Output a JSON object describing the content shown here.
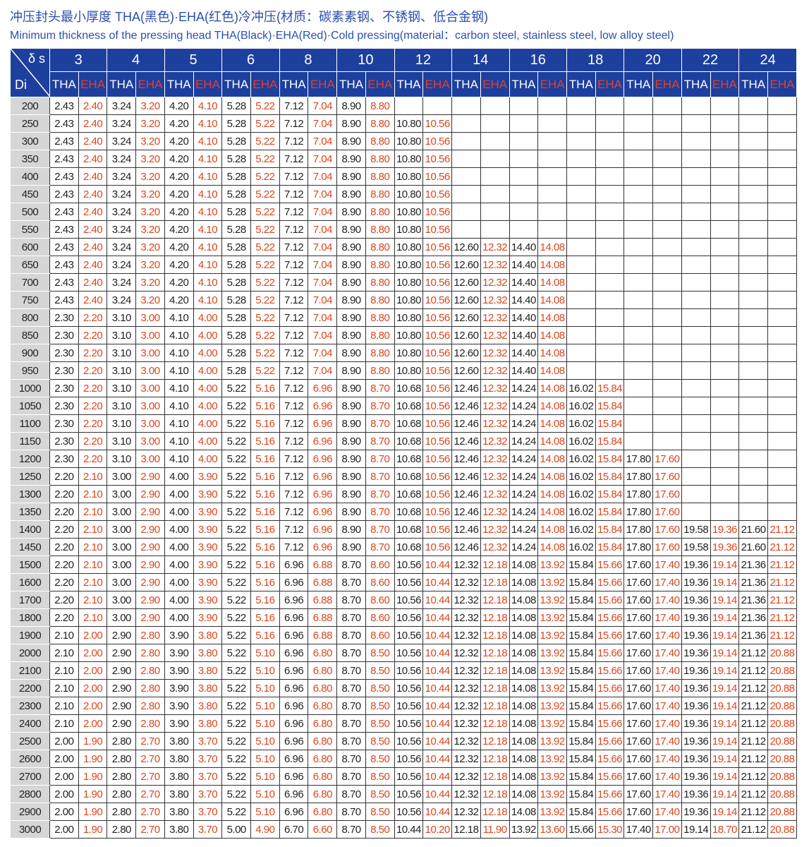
{
  "title": "冲压封头最小厚度  THA(黑色)·EHA(红色)冷冲压(材质：碳素素钢、不锈钢、低合金钢)",
  "subtitle": "Minimum thickness of the pressing head THA(Black)·EHA(Red)·Cold pressing(material：carbon steel, stainless steel, low alloy steel)",
  "colors": {
    "header_bg": "#1d3f9e",
    "eha_text": "#d9461e",
    "tha_text": "#222222",
    "di_bg": "#d6d6d6"
  },
  "table": {
    "corner_top": "δ s",
    "corner_bottom": "Di",
    "tha_label": "THA",
    "eha_label": "EHA",
    "thicknesses": [
      "3",
      "4",
      "5",
      "6",
      "8",
      "10",
      "12",
      "14",
      "16",
      "18",
      "20",
      "22",
      "24"
    ],
    "rows": [
      {
        "di": "200",
        "v": [
          "2.43",
          "2.40",
          "3.24",
          "3.20",
          "4.20",
          "4.10",
          "5.28",
          "5.22",
          "7.12",
          "7.04",
          "8.90",
          "8.80"
        ]
      },
      {
        "di": "250",
        "v": [
          "2.43",
          "2.40",
          "3.24",
          "3.20",
          "4.20",
          "4.10",
          "5.28",
          "5.22",
          "7.12",
          "7.04",
          "8.90",
          "8.80",
          "10.80",
          "10.56"
        ]
      },
      {
        "di": "300",
        "v": [
          "2.43",
          "2.40",
          "3.24",
          "3.20",
          "4.20",
          "4.10",
          "5.28",
          "5.22",
          "7.12",
          "7.04",
          "8.90",
          "8.80",
          "10.80",
          "10.56"
        ]
      },
      {
        "di": "350",
        "v": [
          "2.43",
          "2.40",
          "3.24",
          "3.20",
          "4.20",
          "4.10",
          "5.28",
          "5.22",
          "7.12",
          "7.04",
          "8.90",
          "8.80",
          "10.80",
          "10.56"
        ]
      },
      {
        "di": "400",
        "v": [
          "2.43",
          "2.40",
          "3.24",
          "3.20",
          "4.20",
          "4.10",
          "5.28",
          "5.22",
          "7.12",
          "7.04",
          "8.90",
          "8.80",
          "10.80",
          "10.56"
        ]
      },
      {
        "di": "450",
        "v": [
          "2.43",
          "2.40",
          "3.24",
          "3.20",
          "4.20",
          "4.10",
          "5.28",
          "5.22",
          "7.12",
          "7.04",
          "8.90",
          "8.80",
          "10.80",
          "10.56"
        ]
      },
      {
        "di": "500",
        "v": [
          "2.43",
          "2.40",
          "3.24",
          "3.20",
          "4.20",
          "4.10",
          "5.28",
          "5.22",
          "7.12",
          "7.04",
          "8.90",
          "8.80",
          "10.80",
          "10.56"
        ]
      },
      {
        "di": "550",
        "v": [
          "2.43",
          "2.40",
          "3.24",
          "3.20",
          "4.20",
          "4.10",
          "5.28",
          "5.22",
          "7.12",
          "7.04",
          "8.90",
          "8.80",
          "10.80",
          "10.56"
        ]
      },
      {
        "di": "600",
        "v": [
          "2.43",
          "2.40",
          "3.24",
          "3.20",
          "4.20",
          "4.10",
          "5.28",
          "5.22",
          "7.12",
          "7.04",
          "8.90",
          "8.80",
          "10.80",
          "10.56",
          "12.60",
          "12.32",
          "14.40",
          "14.08"
        ]
      },
      {
        "di": "650",
        "v": [
          "2.43",
          "2.40",
          "3.24",
          "3.20",
          "4.20",
          "4.10",
          "5.28",
          "5.22",
          "7.12",
          "7.04",
          "8.90",
          "8.80",
          "10.80",
          "10.56",
          "12.60",
          "12.32",
          "14.40",
          "14.08"
        ]
      },
      {
        "di": "700",
        "v": [
          "2.43",
          "2.40",
          "3.24",
          "3.20",
          "4.20",
          "4.10",
          "5.28",
          "5.22",
          "7.12",
          "7.04",
          "8.90",
          "8.80",
          "10.80",
          "10.56",
          "12.60",
          "12.32",
          "14.40",
          "14.08"
        ]
      },
      {
        "di": "750",
        "v": [
          "2.43",
          "2.40",
          "3.24",
          "3.20",
          "4.20",
          "4.10",
          "5.28",
          "5.22",
          "7.12",
          "7.04",
          "8.90",
          "8.80",
          "10.80",
          "10.56",
          "12.60",
          "12.32",
          "14.40",
          "14.08"
        ]
      },
      {
        "di": "800",
        "v": [
          "2.30",
          "2.20",
          "3.10",
          "3.00",
          "4.10",
          "4.00",
          "5.28",
          "5.22",
          "7.12",
          "7.04",
          "8.90",
          "8.80",
          "10.80",
          "10.56",
          "12.60",
          "12.32",
          "14.40",
          "14.08"
        ]
      },
      {
        "di": "850",
        "v": [
          "2.30",
          "2.20",
          "3.10",
          "3.00",
          "4.10",
          "4.00",
          "5.28",
          "5.22",
          "7.12",
          "7.04",
          "8.90",
          "8.80",
          "10.80",
          "10.56",
          "12.60",
          "12.32",
          "14.40",
          "14.08"
        ]
      },
      {
        "di": "900",
        "v": [
          "2.30",
          "2.20",
          "3.10",
          "3.00",
          "4.10",
          "4.00",
          "5.28",
          "5.22",
          "7.12",
          "7.04",
          "8.90",
          "8.80",
          "10.80",
          "10.56",
          "12.60",
          "12.32",
          "14.40",
          "14.08"
        ]
      },
      {
        "di": "950",
        "v": [
          "2.30",
          "2.20",
          "3.10",
          "3.00",
          "4.10",
          "4.00",
          "5.28",
          "5.22",
          "7.12",
          "7.04",
          "8.90",
          "8.80",
          "10.80",
          "10.56",
          "12.60",
          "12.32",
          "14.40",
          "14.08"
        ]
      },
      {
        "di": "1000",
        "v": [
          "2.30",
          "2.20",
          "3.10",
          "3.00",
          "4.10",
          "4.00",
          "5.22",
          "5.16",
          "7.12",
          "6.96",
          "8.90",
          "8.70",
          "10.68",
          "10.56",
          "12.46",
          "12.32",
          "14.24",
          "14.08",
          "16.02",
          "15.84"
        ]
      },
      {
        "di": "1050",
        "v": [
          "2.30",
          "2.20",
          "3.10",
          "3.00",
          "4.10",
          "4.00",
          "5.22",
          "5.16",
          "7.12",
          "6.96",
          "8.90",
          "8.70",
          "10.68",
          "10.56",
          "12.46",
          "12.32",
          "14.24",
          "14.08",
          "16.02",
          "15.84"
        ]
      },
      {
        "di": "1100",
        "v": [
          "2.30",
          "2.20",
          "3.10",
          "3.00",
          "4.10",
          "4.00",
          "5.22",
          "5.16",
          "7.12",
          "6.96",
          "8.90",
          "8.70",
          "10.68",
          "10.56",
          "12.46",
          "12.32",
          "14.24",
          "14.08",
          "16.02",
          "15.84"
        ]
      },
      {
        "di": "1150",
        "v": [
          "2.30",
          "2.20",
          "3.10",
          "3.00",
          "4.10",
          "4.00",
          "5.22",
          "5.16",
          "7.12",
          "6.96",
          "8.90",
          "8.70",
          "10.68",
          "10.56",
          "12.46",
          "12.32",
          "14.24",
          "14.08",
          "16.02",
          "15.84"
        ]
      },
      {
        "di": "1200",
        "v": [
          "2.30",
          "2.20",
          "3.10",
          "3.00",
          "4.10",
          "4.00",
          "5.22",
          "5.16",
          "7.12",
          "6.96",
          "8.90",
          "8.70",
          "10.68",
          "10.56",
          "12.46",
          "12.32",
          "14.24",
          "14.08",
          "16.02",
          "15.84",
          "17.80",
          "17.60"
        ]
      },
      {
        "di": "1250",
        "v": [
          "2.20",
          "2.10",
          "3.00",
          "2.90",
          "4.00",
          "3.90",
          "5.22",
          "5.16",
          "7.12",
          "6.96",
          "8.90",
          "8.70",
          "10.68",
          "10.56",
          "12.46",
          "12.32",
          "14.24",
          "14.08",
          "16.02",
          "15.84",
          "17.80",
          "17.60"
        ]
      },
      {
        "di": "1300",
        "v": [
          "2.20",
          "2.10",
          "3.00",
          "2.90",
          "4.00",
          "3.90",
          "5.22",
          "5.16",
          "7.12",
          "6.96",
          "8.90",
          "8.70",
          "10.68",
          "10.56",
          "12.46",
          "12.32",
          "14.24",
          "14.08",
          "16.02",
          "15.84",
          "17.80",
          "17.60"
        ]
      },
      {
        "di": "1350",
        "v": [
          "2.20",
          "2.10",
          "3.00",
          "2.90",
          "4.00",
          "3.90",
          "5.22",
          "5.16",
          "7.12",
          "6.96",
          "8.90",
          "8.70",
          "10.68",
          "10.56",
          "12.46",
          "12.32",
          "14.24",
          "14.08",
          "16.02",
          "15.84",
          "17.80",
          "17.60"
        ]
      },
      {
        "di": "1400",
        "v": [
          "2.20",
          "2.10",
          "3.00",
          "2.90",
          "4.00",
          "3.90",
          "5.22",
          "5.16",
          "7.12",
          "6.96",
          "8.90",
          "8.70",
          "10.68",
          "10.56",
          "12.46",
          "12.32",
          "14.24",
          "14.08",
          "16.02",
          "15.84",
          "17.80",
          "17.60",
          "19.58",
          "19.36",
          "21.60",
          "21.12"
        ]
      },
      {
        "di": "1450",
        "v": [
          "2.20",
          "2.10",
          "3.00",
          "2.90",
          "4.00",
          "3.90",
          "5.22",
          "5.16",
          "7.12",
          "6.96",
          "8.90",
          "8.70",
          "10.68",
          "10.56",
          "12.46",
          "12.32",
          "14.24",
          "14.08",
          "16.02",
          "15.84",
          "17.80",
          "17.60",
          "19.58",
          "19.36",
          "21.60",
          "21.12"
        ]
      },
      {
        "di": "1500",
        "v": [
          "2.20",
          "2.10",
          "3.00",
          "2.90",
          "4.00",
          "3.90",
          "5.22",
          "5.16",
          "6.96",
          "6.88",
          "8.70",
          "8.60",
          "10.56",
          "10.44",
          "12.32",
          "12.18",
          "14.08",
          "13.92",
          "15.84",
          "15.66",
          "17.60",
          "17.40",
          "19.36",
          "19.14",
          "21.36",
          "21.12"
        ]
      },
      {
        "di": "1600",
        "v": [
          "2.20",
          "2.10",
          "3.00",
          "2.90",
          "4.00",
          "3.90",
          "5.22",
          "5.16",
          "6.96",
          "6.88",
          "8.70",
          "8.60",
          "10.56",
          "10.44",
          "12.32",
          "12.18",
          "14.08",
          "13.92",
          "15.84",
          "15.66",
          "17.60",
          "17.40",
          "19.36",
          "19.14",
          "21.36",
          "21.12"
        ]
      },
      {
        "di": "1700",
        "v": [
          "2.20",
          "2.10",
          "3.00",
          "2.90",
          "4.00",
          "3.90",
          "5.22",
          "5.16",
          "6.96",
          "6.88",
          "8.70",
          "8.60",
          "10.56",
          "10.44",
          "12.32",
          "12.18",
          "14.08",
          "13.92",
          "15.84",
          "15.66",
          "17.60",
          "17.40",
          "19.36",
          "19.14",
          "21.36",
          "21.12"
        ]
      },
      {
        "di": "1800",
        "v": [
          "2.20",
          "2.10",
          "3.00",
          "2.90",
          "4.00",
          "3.90",
          "5.22",
          "5.16",
          "6.96",
          "6.88",
          "8.70",
          "8.60",
          "10.56",
          "10.44",
          "12.32",
          "12.18",
          "14.08",
          "13.92",
          "15.84",
          "15.66",
          "17.60",
          "17.40",
          "19.36",
          "19.14",
          "21.36",
          "21.12"
        ]
      },
      {
        "di": "1900",
        "v": [
          "2.10",
          "2.00",
          "2.90",
          "2.80",
          "3.90",
          "3.80",
          "5.22",
          "5.16",
          "6.96",
          "6.88",
          "8.70",
          "8.60",
          "10.56",
          "10.44",
          "12.32",
          "12.18",
          "14.08",
          "13.92",
          "15.84",
          "15.66",
          "17.60",
          "17.40",
          "19.36",
          "19.14",
          "21.36",
          "21.12"
        ]
      },
      {
        "di": "2000",
        "v": [
          "2.10",
          "2.00",
          "2.90",
          "2.80",
          "3.90",
          "3.80",
          "5.22",
          "5.10",
          "6.96",
          "6.80",
          "8.70",
          "8.50",
          "10.56",
          "10.44",
          "12.32",
          "12.18",
          "14.08",
          "13.92",
          "15.84",
          "15.66",
          "17.60",
          "17.40",
          "19.36",
          "19.14",
          "21.12",
          "20.88"
        ]
      },
      {
        "di": "2100",
        "v": [
          "2.10",
          "2.00",
          "2.90",
          "2.80",
          "3.90",
          "3.80",
          "5.22",
          "5.10",
          "6.96",
          "6.80",
          "8.70",
          "8.50",
          "10.56",
          "10.44",
          "12.32",
          "12.18",
          "14.08",
          "13.92",
          "15.84",
          "15.66",
          "17.60",
          "17.40",
          "19.36",
          "19.14",
          "21.12",
          "20.88"
        ]
      },
      {
        "di": "2200",
        "v": [
          "2.10",
          "2.00",
          "2.90",
          "2.80",
          "3.90",
          "3.80",
          "5.22",
          "5.10",
          "6.96",
          "6.80",
          "8.70",
          "8.50",
          "10.56",
          "10.44",
          "12.32",
          "12.18",
          "14.08",
          "13.92",
          "15.84",
          "15.66",
          "17.60",
          "17.40",
          "19.36",
          "19.14",
          "21.12",
          "20.88"
        ]
      },
      {
        "di": "2300",
        "v": [
          "2.10",
          "2.00",
          "2.90",
          "2.80",
          "3.90",
          "3.80",
          "5.22",
          "5.10",
          "6.96",
          "6.80",
          "8.70",
          "8.50",
          "10.56",
          "10.44",
          "12.32",
          "12.18",
          "14.08",
          "13.92",
          "15.84",
          "15.66",
          "17.60",
          "17.40",
          "19.36",
          "19.14",
          "21.12",
          "20.88"
        ]
      },
      {
        "di": "2400",
        "v": [
          "2.10",
          "2.00",
          "2.90",
          "2.80",
          "3.90",
          "3.80",
          "5.22",
          "5.10",
          "6.96",
          "6.80",
          "8.70",
          "8.50",
          "10.56",
          "10.44",
          "12.32",
          "12.18",
          "14.08",
          "13.92",
          "15.84",
          "15.66",
          "17.60",
          "17.40",
          "19.36",
          "19.14",
          "21.12",
          "20.88"
        ]
      },
      {
        "di": "2500",
        "v": [
          "2.00",
          "1.90",
          "2.80",
          "2.70",
          "3.80",
          "3.70",
          "5.22",
          "5.10",
          "6.96",
          "6.80",
          "8.70",
          "8.50",
          "10.56",
          "10.44",
          "12.32",
          "12.18",
          "14.08",
          "13.92",
          "15.84",
          "15.66",
          "17.60",
          "17.40",
          "19.36",
          "19.14",
          "21.12",
          "20.88"
        ]
      },
      {
        "di": "2600",
        "v": [
          "2.00",
          "1.90",
          "2.80",
          "2.70",
          "3.80",
          "3.70",
          "5.22",
          "5.10",
          "6.96",
          "6.80",
          "8.70",
          "8.50",
          "10.56",
          "10.44",
          "12.32",
          "12.18",
          "14.08",
          "13.92",
          "15.84",
          "15.66",
          "17.60",
          "17.40",
          "19.36",
          "19.14",
          "21.12",
          "20.88"
        ]
      },
      {
        "di": "2700",
        "v": [
          "2.00",
          "1.90",
          "2.80",
          "2.70",
          "3.80",
          "3.70",
          "5.22",
          "5.10",
          "6.96",
          "6.80",
          "8.70",
          "8.50",
          "10.56",
          "10.44",
          "12.32",
          "12.18",
          "14.08",
          "13.92",
          "15.84",
          "15.66",
          "17.60",
          "17.40",
          "19.36",
          "19.14",
          "21.12",
          "20.88"
        ]
      },
      {
        "di": "2800",
        "v": [
          "2.00",
          "1.90",
          "2.80",
          "2.70",
          "3.80",
          "3.70",
          "5.22",
          "5.10",
          "6.96",
          "6.80",
          "8.70",
          "8.50",
          "10.56",
          "10.44",
          "12.32",
          "12.18",
          "14.08",
          "13.92",
          "15.84",
          "15.66",
          "17.60",
          "17.40",
          "19.36",
          "19.14",
          "21.12",
          "20.88"
        ]
      },
      {
        "di": "2900",
        "v": [
          "2.00",
          "1.90",
          "2.80",
          "2.70",
          "3.80",
          "3.70",
          "5.22",
          "5.10",
          "6.96",
          "6.80",
          "8.70",
          "8.50",
          "10.56",
          "10.44",
          "12.32",
          "12.18",
          "14.08",
          "13.92",
          "15.84",
          "15.66",
          "17.60",
          "17.40",
          "19.36",
          "19.14",
          "21.12",
          "20.88"
        ]
      },
      {
        "di": "3000",
        "v": [
          "2.00",
          "1.90",
          "2.80",
          "2.70",
          "3.80",
          "3.70",
          "5.00",
          "4.90",
          "6.70",
          "6.60",
          "8.70",
          "8.50",
          "10.44",
          "10.20",
          "12.18",
          "11.90",
          "13.92",
          "13.60",
          "15.66",
          "15.30",
          "17.40",
          "17.00",
          "19.14",
          "18.70",
          "21.12",
          "20.88"
        ]
      }
    ]
  }
}
